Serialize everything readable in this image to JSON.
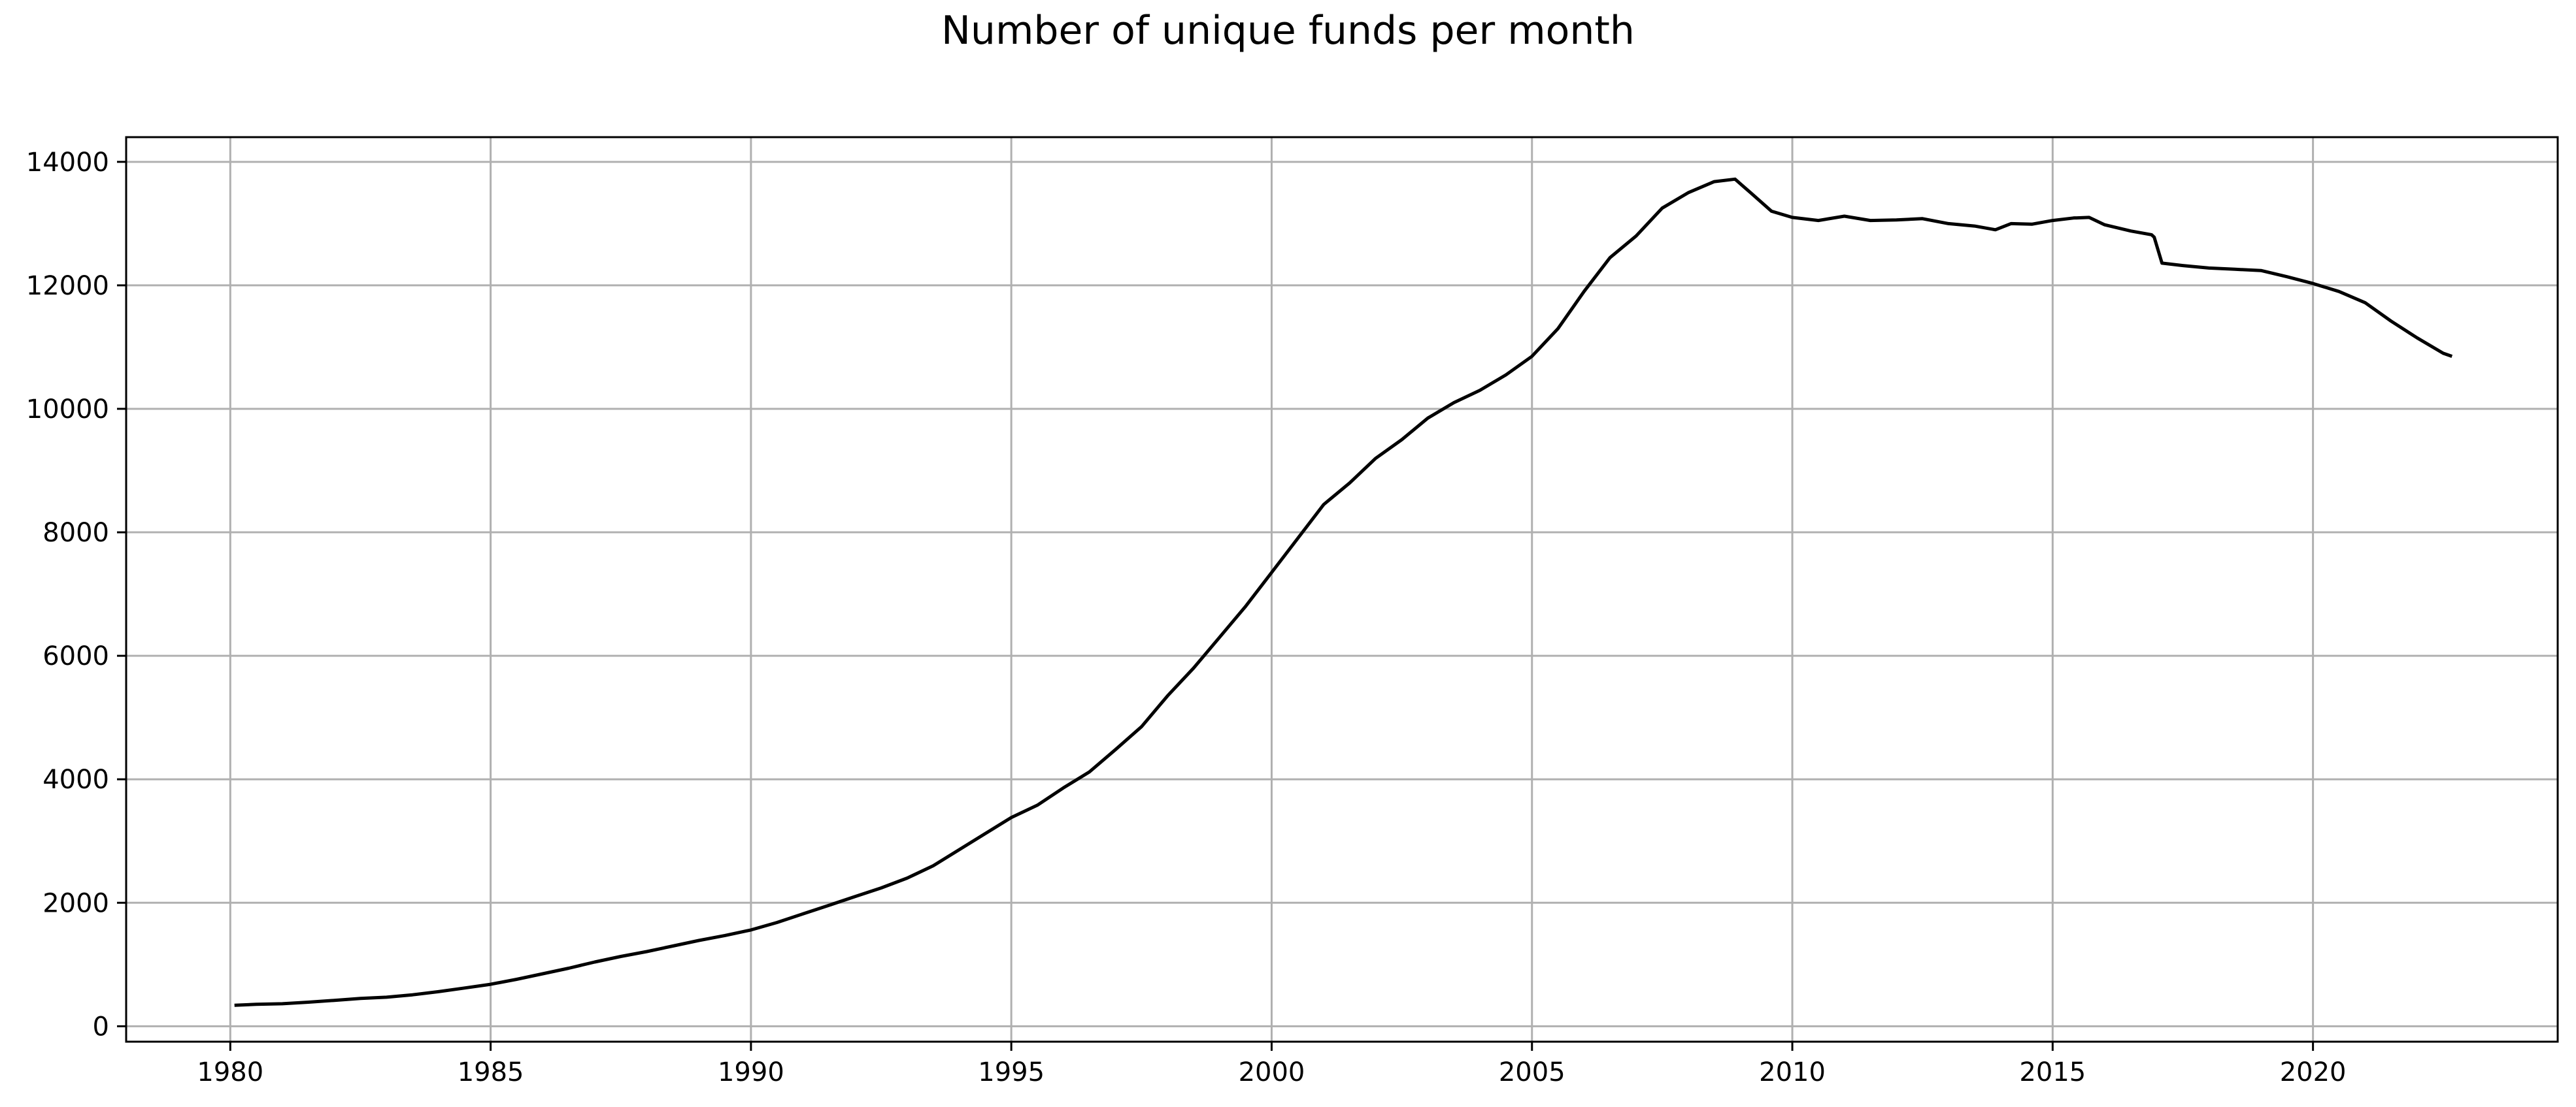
{
  "chart_data": {
    "type": "line",
    "title": "Number of unique funds per month",
    "xlabel": "",
    "ylabel": "",
    "xlim": [
      1978.0,
      2024.7
    ],
    "ylim": [
      -250,
      14400
    ],
    "xticks": [
      1980,
      1985,
      1990,
      1995,
      2000,
      2005,
      2010,
      2015,
      2020
    ],
    "yticks": [
      0,
      2000,
      4000,
      6000,
      8000,
      10000,
      12000,
      14000
    ],
    "grid": true,
    "legend": "none",
    "line_color": "#000000",
    "grid_color": "#b0b0b0",
    "series": [
      {
        "x": [
          1980.08,
          1980.5,
          1981.0,
          1981.5,
          1982.0,
          1982.5,
          1983.0,
          1983.5,
          1984.0,
          1984.5,
          1985.0,
          1985.5,
          1986.0,
          1986.5,
          1987.0,
          1987.5,
          1988.0,
          1988.5,
          1989.0,
          1989.5,
          1990.0,
          1990.5,
          1991.0,
          1991.5,
          1992.0,
          1992.5,
          1993.0,
          1993.5,
          1994.0,
          1994.5,
          1995.0,
          1995.5,
          1996.0,
          1996.5,
          1997.0,
          1997.5,
          1998.0,
          1998.5,
          1999.0,
          1999.5,
          2000.0,
          2000.5,
          2001.0,
          2001.5,
          2002.0,
          2002.5,
          2003.0,
          2003.5,
          2004.0,
          2004.5,
          2005.0,
          2005.5,
          2006.0,
          2006.5,
          2007.0,
          2007.5,
          2008.0,
          2008.5,
          2008.9,
          2009.2,
          2009.6,
          2010.0,
          2010.5,
          2011.0,
          2011.5,
          2012.0,
          2012.5,
          2013.0,
          2013.5,
          2013.9,
          2014.2,
          2014.6,
          2015.0,
          2015.4,
          2015.7,
          2016.0,
          2016.5,
          2016.9,
          2016.95,
          2017.1,
          2017.5,
          2018.0,
          2018.5,
          2019.0,
          2019.5,
          2020.0,
          2020.5,
          2021.0,
          2021.5,
          2022.0,
          2022.5,
          2022.67
        ],
        "values": [
          340,
          355,
          365,
          390,
          420,
          450,
          470,
          510,
          560,
          620,
          680,
          760,
          850,
          940,
          1040,
          1130,
          1210,
          1300,
          1390,
          1470,
          1560,
          1680,
          1820,
          1960,
          2100,
          2240,
          2400,
          2600,
          2860,
          3120,
          3380,
          3580,
          3860,
          4120,
          4480,
          4850,
          5350,
          5800,
          6300,
          6800,
          7350,
          7900,
          8450,
          8800,
          9200,
          9500,
          9850,
          10100,
          10300,
          10550,
          10850,
          11300,
          11900,
          12450,
          12800,
          13250,
          13500,
          13680,
          13720,
          13500,
          13200,
          13100,
          13050,
          13120,
          13050,
          13060,
          13080,
          13000,
          12960,
          12900,
          13000,
          12990,
          13050,
          13090,
          13100,
          12980,
          12880,
          12820,
          12780,
          12360,
          12320,
          12280,
          12260,
          12240,
          12140,
          12030,
          11900,
          11720,
          11420,
          11150,
          10900,
          10850
        ]
      }
    ]
  }
}
